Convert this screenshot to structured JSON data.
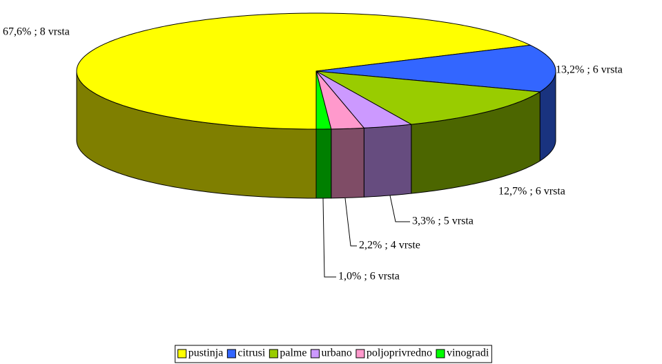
{
  "chart_data": {
    "type": "pie3d",
    "categories": [
      "pustinja",
      "citrusi",
      "palme",
      "urbano",
      "poljoprivredno",
      "vinogradi"
    ],
    "values": [
      67.6,
      13.2,
      12.7,
      3.3,
      2.2,
      1.0
    ],
    "value_labels": [
      "67,6% ; 8 vrsta",
      "13,2% ; 6 vrsta",
      "12,7% ; 6 vrsta",
      "3,3% ; 5 vrsta",
      "2,2% ; 4 vrste",
      "1,0% ; 6 vrsta"
    ],
    "colors": [
      "#ffff00",
      "#3366ff",
      "#99cc00",
      "#cc99ff",
      "#ff99cc",
      "#00ff00"
    ],
    "legend": "bottom"
  }
}
